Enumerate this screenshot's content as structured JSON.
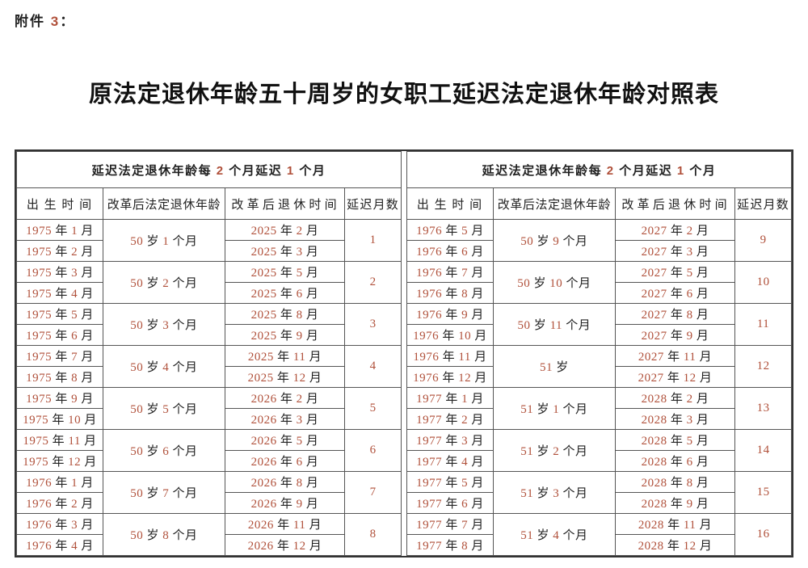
{
  "page": {
    "attachment_label": "附件 3：",
    "title": "原法定退休年龄五十周岁的女职工延迟法定退休年龄对照表"
  },
  "table": {
    "group_header": "延迟法定退休年龄每 2 个月延迟 1 个月",
    "columns": [
      "出生时间",
      "改革后法定退休年龄",
      "改革后退休时间",
      "延迟月数"
    ],
    "halves": [
      {
        "groups": [
          {
            "birth": [
              "1975 年 1 月",
              "1975 年 2 月"
            ],
            "age": "50 岁 1 个月",
            "retire": [
              "2025 年 2 月",
              "2025 年 3 月"
            ],
            "delay": "1"
          },
          {
            "birth": [
              "1975 年 3 月",
              "1975 年 4 月"
            ],
            "age": "50 岁 2 个月",
            "retire": [
              "2025 年 5 月",
              "2025 年 6 月"
            ],
            "delay": "2"
          },
          {
            "birth": [
              "1975 年 5 月",
              "1975 年 6 月"
            ],
            "age": "50 岁 3 个月",
            "retire": [
              "2025 年 8 月",
              "2025 年 9 月"
            ],
            "delay": "3"
          },
          {
            "birth": [
              "1975 年 7 月",
              "1975 年 8 月"
            ],
            "age": "50 岁 4 个月",
            "retire": [
              "2025 年 11 月",
              "2025 年 12 月"
            ],
            "delay": "4"
          },
          {
            "birth": [
              "1975 年 9 月",
              "1975 年 10 月"
            ],
            "age": "50 岁 5 个月",
            "retire": [
              "2026 年 2 月",
              "2026 年 3 月"
            ],
            "delay": "5"
          },
          {
            "birth": [
              "1975 年 11 月",
              "1975 年 12 月"
            ],
            "age": "50 岁 6 个月",
            "retire": [
              "2026 年 5 月",
              "2026 年 6 月"
            ],
            "delay": "6"
          },
          {
            "birth": [
              "1976 年 1 月",
              "1976 年 2 月"
            ],
            "age": "50 岁 7 个月",
            "retire": [
              "2026 年 8 月",
              "2026 年 9 月"
            ],
            "delay": "7"
          },
          {
            "birth": [
              "1976 年 3 月",
              "1976 年 4 月"
            ],
            "age": "50 岁 8 个月",
            "retire": [
              "2026 年 11 月",
              "2026 年 12 月"
            ],
            "delay": "8"
          }
        ]
      },
      {
        "groups": [
          {
            "birth": [
              "1976 年 5 月",
              "1976 年 6 月"
            ],
            "age": "50 岁 9 个月",
            "retire": [
              "2027 年 2 月",
              "2027 年 3 月"
            ],
            "delay": "9"
          },
          {
            "birth": [
              "1976 年 7 月",
              "1976 年 8 月"
            ],
            "age": "50 岁 10 个月",
            "retire": [
              "2027 年 5 月",
              "2027 年 6 月"
            ],
            "delay": "10"
          },
          {
            "birth": [
              "1976 年 9 月",
              "1976 年 10 月"
            ],
            "age": "50 岁 11 个月",
            "retire": [
              "2027 年 8 月",
              "2027 年 9 月"
            ],
            "delay": "11"
          },
          {
            "birth": [
              "1976 年 11 月",
              "1976 年 12 月"
            ],
            "age": "51 岁",
            "retire": [
              "2027 年 11 月",
              "2027 年 12 月"
            ],
            "delay": "12"
          },
          {
            "birth": [
              "1977 年 1 月",
              "1977 年 2 月"
            ],
            "age": "51 岁 1 个月",
            "retire": [
              "2028 年 2 月",
              "2028 年 3 月"
            ],
            "delay": "13"
          },
          {
            "birth": [
              "1977 年 3 月",
              "1977 年 4 月"
            ],
            "age": "51 岁 2 个月",
            "retire": [
              "2028 年 5 月",
              "2028 年 6 月"
            ],
            "delay": "14"
          },
          {
            "birth": [
              "1977 年 5 月",
              "1977 年 6 月"
            ],
            "age": "51 岁 3 个月",
            "retire": [
              "2028 年 8 月",
              "2028 年 9 月"
            ],
            "delay": "15"
          },
          {
            "birth": [
              "1977 年 7 月",
              "1977 年 8 月"
            ],
            "age": "51 岁 4 个月",
            "retire": [
              "2028 年 11 月",
              "2028 年 12 月"
            ],
            "delay": "16"
          }
        ]
      }
    ]
  },
  "colors": {
    "digit": "#b0503a",
    "text": "#222222",
    "border_outer": "#333333",
    "border_inner": "#555555",
    "background": "#ffffff"
  }
}
